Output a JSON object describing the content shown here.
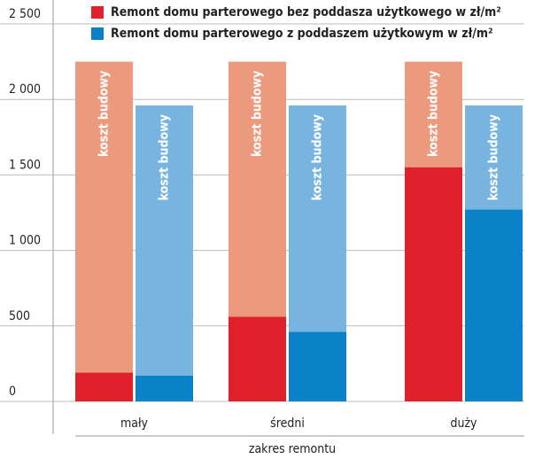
{
  "chart_data": {
    "type": "bar",
    "categories": [
      "mały",
      "średni",
      "duży"
    ],
    "xlabel": "zakres remontu",
    "bar_label": "koszt budowy",
    "ylim": [
      0,
      2500
    ],
    "yticks": [
      0,
      500,
      {
        "value": 1000,
        "label": "1 000"
      },
      {
        "value": 1500,
        "label": "1 500"
      },
      {
        "value": 2000,
        "label": "2 000"
      },
      {
        "value": 2500,
        "label": "2 500"
      }
    ],
    "grid": true,
    "legend": "top",
    "series": [
      {
        "name": "Remont domu parterowego bez poddasza użytkowego w zł/m²",
        "color": "#e0202a",
        "background_color": "#ec9a7e",
        "values": [
          190,
          560,
          1550
        ],
        "background_values": [
          2250,
          2250,
          2250
        ]
      },
      {
        "name": "Remont domu parterowego z poddaszem użytkowym w zł/m²",
        "color": "#0a82c8",
        "background_color": "#78b4e0",
        "values": [
          170,
          460,
          1270
        ],
        "background_values": [
          1960,
          1960,
          1960
        ]
      }
    ]
  }
}
